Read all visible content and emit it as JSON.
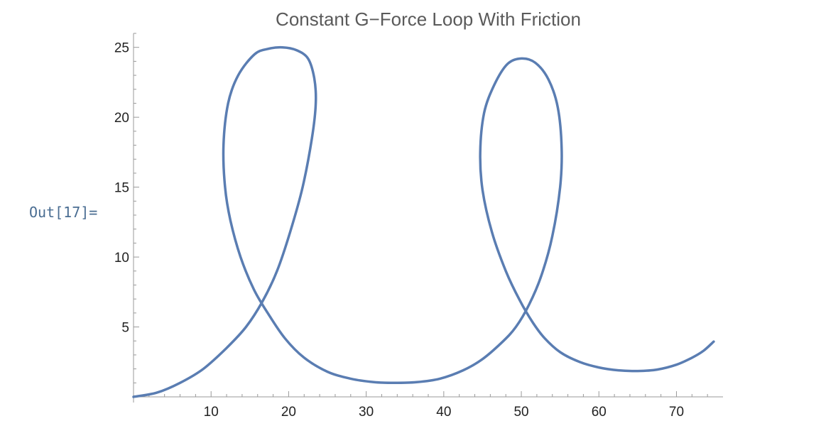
{
  "notebook": {
    "out_label": "Out[17]="
  },
  "chart_data": {
    "type": "line",
    "title": "Constant G−Force Loop With Friction",
    "xlabel": "",
    "ylabel": "",
    "xlim": [
      0,
      76
    ],
    "ylim": [
      0,
      26
    ],
    "x_ticks": [
      10,
      20,
      30,
      40,
      50,
      60,
      70
    ],
    "y_ticks": [
      5,
      10,
      15,
      20,
      25
    ],
    "grid": false,
    "line_color": "#5a7db2",
    "series": [
      {
        "x": [
          0,
          3,
          6,
          9,
          12,
          14.5,
          16.6,
          18.5,
          20.2,
          21.8,
          23.0,
          23.5,
          23.3,
          22.5,
          21.0,
          19.2,
          17.4,
          15.6,
          13.5,
          12.2,
          11.6,
          11.8,
          12.5,
          13.8,
          15.5,
          17.3,
          19.5,
          22.0,
          25.0,
          28.0,
          31.0,
          33.6,
          36.5,
          39.5,
          42.5,
          45.0,
          47.5,
          49.3,
          51.0,
          52.6,
          54.0,
          55.0,
          55.2,
          54.7,
          53.5,
          51.8,
          50.0,
          48.2,
          46.5,
          45.2,
          44.7,
          45.0,
          46.2,
          48.0,
          49.8,
          51.5,
          53.0,
          55.0,
          57.5,
          60.0,
          62.5,
          65.0,
          67.5,
          70.0,
          72.0,
          73.5,
          74.8
        ],
        "y": [
          0,
          0.3,
          1.0,
          2.0,
          3.5,
          5.0,
          6.8,
          9.0,
          11.8,
          15.0,
          18.5,
          21.0,
          22.8,
          24.2,
          24.8,
          25.0,
          24.9,
          24.5,
          23.0,
          21.0,
          18.0,
          15.0,
          12.6,
          10.0,
          7.7,
          6.0,
          4.2,
          2.8,
          1.8,
          1.3,
          1.05,
          1.0,
          1.05,
          1.3,
          1.9,
          2.7,
          3.9,
          5.0,
          6.6,
          8.7,
          11.5,
          15.0,
          17.8,
          20.7,
          22.7,
          23.9,
          24.2,
          23.8,
          22.3,
          20.3,
          17.5,
          14.8,
          11.8,
          9.0,
          6.9,
          5.3,
          4.2,
          3.2,
          2.5,
          2.1,
          1.9,
          1.85,
          1.95,
          2.3,
          2.8,
          3.3,
          3.95
        ]
      }
    ]
  }
}
